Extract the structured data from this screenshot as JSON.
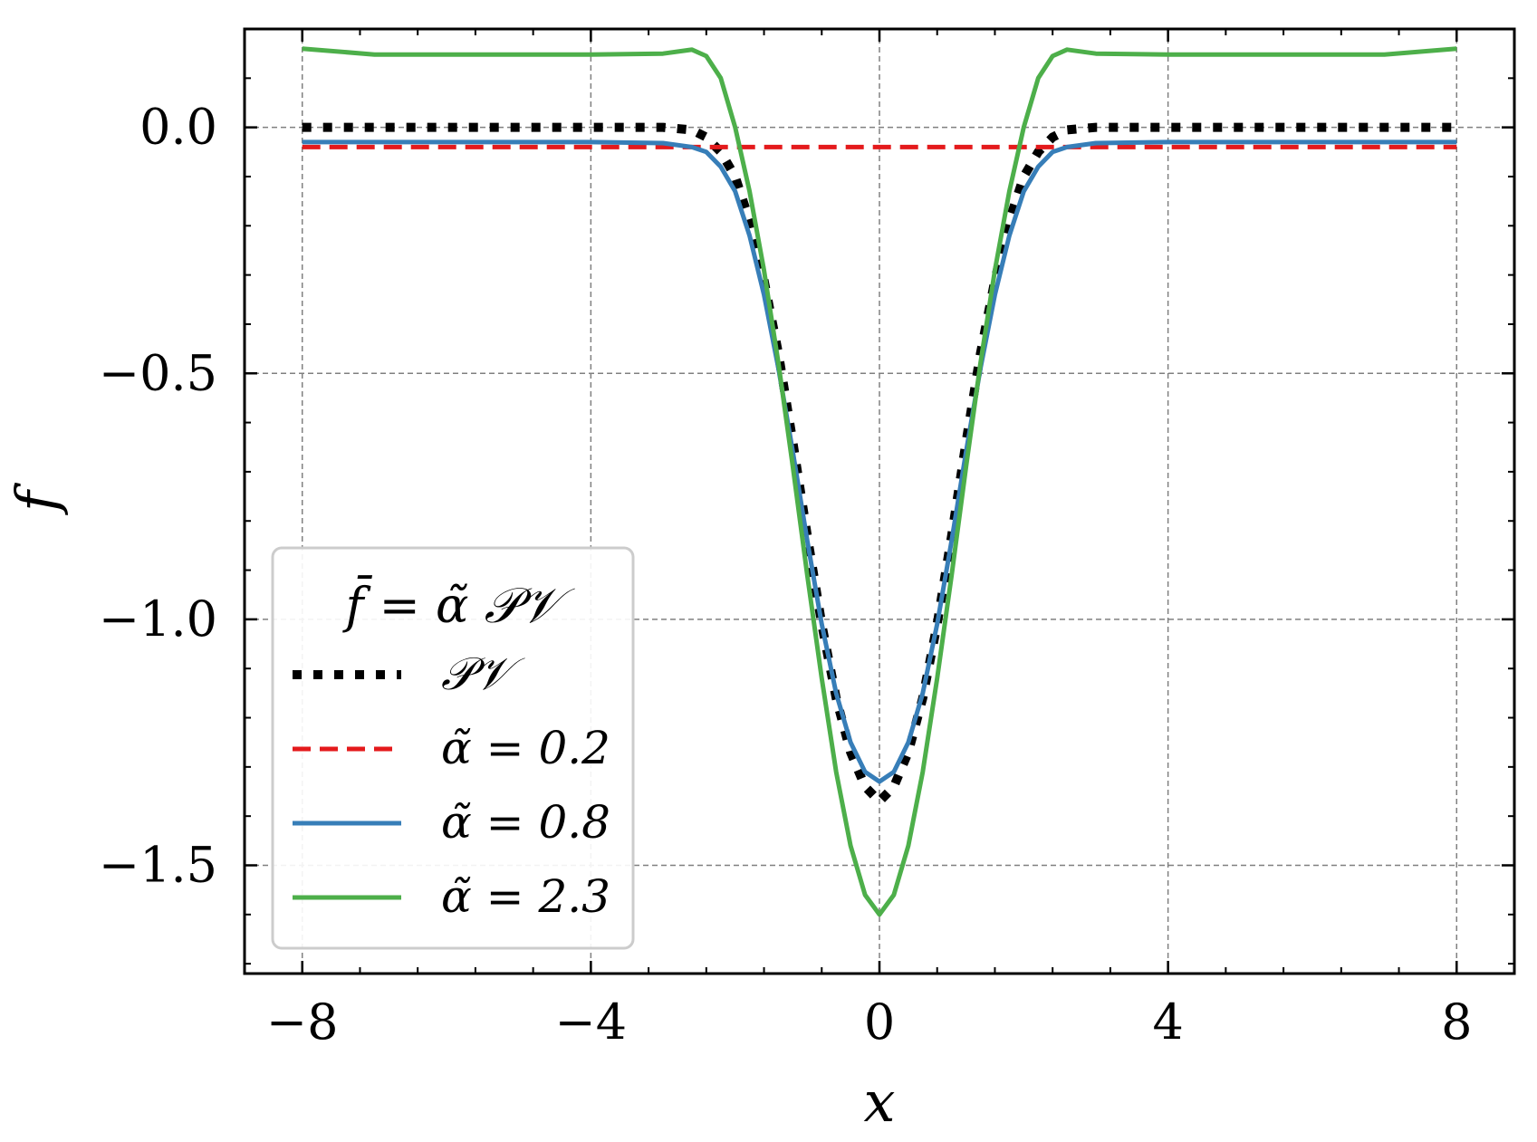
{
  "chart_data": {
    "type": "line",
    "xlabel": "x",
    "ylabel": "f",
    "xlim": [
      -8.8,
      8.8
    ],
    "ylim": [
      -1.72,
      0.2
    ],
    "xticks": [
      -8,
      -4,
      0,
      4,
      8
    ],
    "xtick_labels": [
      "−8",
      "−4",
      "0",
      "4",
      "8"
    ],
    "yticks": [
      0.0,
      -0.5,
      -1.0,
      -1.5
    ],
    "ytick_labels": [
      "0.0",
      "−0.5",
      "−1.0",
      "−1.5"
    ],
    "grid": true,
    "legend": {
      "placement": "lower-left",
      "title": "f̄ = α̃ 𝒫𝒱"
    },
    "series": [
      {
        "name": "𝒫𝒱",
        "color": "#000000",
        "style": "dotted",
        "x": [
          -8,
          -6,
          -4,
          -3,
          -2.6,
          -2.4,
          -2.2,
          -2.0,
          -1.8,
          -1.6,
          -1.4,
          -1.2,
          -1.0,
          -0.8,
          -0.6,
          -0.4,
          -0.2,
          0,
          0.2,
          0.4,
          0.6,
          0.8,
          1.0,
          1.2,
          1.4,
          1.6,
          1.8,
          2.0,
          2.2,
          2.4,
          2.6,
          3,
          4,
          6,
          8
        ],
        "y": [
          0,
          0,
          0,
          0,
          -0.005,
          -0.02,
          -0.05,
          -0.1,
          -0.19,
          -0.31,
          -0.46,
          -0.64,
          -0.83,
          -1.01,
          -1.16,
          -1.27,
          -1.34,
          -1.37,
          -1.34,
          -1.27,
          -1.16,
          -1.01,
          -0.83,
          -0.64,
          -0.46,
          -0.31,
          -0.19,
          -0.1,
          -0.05,
          -0.02,
          -0.005,
          0,
          0,
          0,
          0
        ]
      },
      {
        "name": "α̃ = 0.2",
        "color": "#e41a1c",
        "style": "dashed",
        "x": [
          -8,
          8
        ],
        "y": [
          -0.04,
          -0.04
        ]
      },
      {
        "name": "α̃ = 0.8",
        "color": "#377eb8",
        "style": "solid",
        "x": [
          -8,
          -6,
          -4,
          -3,
          -2.6,
          -2.4,
          -2.2,
          -2.0,
          -1.8,
          -1.6,
          -1.4,
          -1.2,
          -1.0,
          -0.8,
          -0.6,
          -0.4,
          -0.2,
          0,
          0.2,
          0.4,
          0.6,
          0.8,
          1.0,
          1.2,
          1.4,
          1.6,
          1.8,
          2.0,
          2.2,
          2.4,
          2.6,
          3,
          4,
          6,
          8
        ],
        "y": [
          -0.03,
          -0.03,
          -0.03,
          -0.032,
          -0.04,
          -0.05,
          -0.08,
          -0.13,
          -0.22,
          -0.34,
          -0.49,
          -0.66,
          -0.84,
          -1.01,
          -1.15,
          -1.25,
          -1.31,
          -1.33,
          -1.31,
          -1.25,
          -1.15,
          -1.01,
          -0.84,
          -0.66,
          -0.49,
          -0.34,
          -0.22,
          -0.13,
          -0.08,
          -0.05,
          -0.04,
          -0.032,
          -0.03,
          -0.03,
          -0.03
        ]
      },
      {
        "name": "α̃ = 2.3",
        "color": "#4daf4a",
        "style": "solid",
        "x": [
          -8,
          -7,
          -6,
          -4,
          -3,
          -2.6,
          -2.4,
          -2.2,
          -2.0,
          -1.8,
          -1.6,
          -1.4,
          -1.2,
          -1.0,
          -0.8,
          -0.6,
          -0.4,
          -0.2,
          0,
          0.2,
          0.4,
          0.6,
          0.8,
          1.0,
          1.2,
          1.4,
          1.6,
          1.8,
          2.0,
          2.2,
          2.4,
          2.6,
          3,
          4,
          6,
          7,
          8
        ],
        "y": [
          0.16,
          0.148,
          0.148,
          0.148,
          0.15,
          0.158,
          0.145,
          0.1,
          0.0,
          -0.13,
          -0.29,
          -0.48,
          -0.69,
          -0.91,
          -1.12,
          -1.31,
          -1.46,
          -1.56,
          -1.6,
          -1.56,
          -1.46,
          -1.31,
          -1.12,
          -0.91,
          -0.69,
          -0.48,
          -0.29,
          -0.13,
          0.0,
          0.1,
          0.145,
          0.158,
          0.15,
          0.148,
          0.148,
          0.148,
          0.16
        ]
      }
    ]
  }
}
